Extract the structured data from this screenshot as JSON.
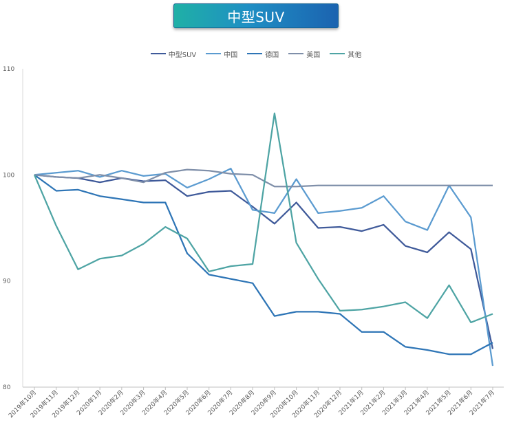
{
  "chart_data": {
    "type": "line",
    "title": "中型SUV",
    "xlabel": "",
    "ylabel": "",
    "ylim": [
      80,
      110
    ],
    "yticks": [
      80,
      90,
      100,
      110
    ],
    "grid": false,
    "legend_position": "top",
    "categories": [
      "2019年10月",
      "2019年11月",
      "2019年12月",
      "2020年1月",
      "2020年2月",
      "2020年3月",
      "2020年4月",
      "2020年5月",
      "2020年6月",
      "2020年7月",
      "2020年8月",
      "2020年9月",
      "2020年10月",
      "2020年11月",
      "2020年12月",
      "2021年1月",
      "2021年2月",
      "2021年3月",
      "2021年4月",
      "2021年5月",
      "2021年6月",
      "2021年7月"
    ],
    "series": [
      {
        "name": "中型SUV",
        "color": "#3f5a9a",
        "values": [
          100,
          99.8,
          99.7,
          99.3,
          99.7,
          99.4,
          99.5,
          98.0,
          98.4,
          98.5,
          97.0,
          95.4,
          97.4,
          95.0,
          95.1,
          94.7,
          95.3,
          93.3,
          92.7,
          94.6,
          93.0,
          83.6
        ]
      },
      {
        "name": "中国",
        "color": "#5b9bd0",
        "values": [
          100,
          100.2,
          100.4,
          99.8,
          100.4,
          99.9,
          100.1,
          98.8,
          99.6,
          100.6,
          96.7,
          96.4,
          99.6,
          96.4,
          96.6,
          96.9,
          98.0,
          95.6,
          94.8,
          99.0,
          96.0,
          82.0
        ]
      },
      {
        "name": "德国",
        "color": "#2e75b6",
        "values": [
          100,
          98.5,
          98.6,
          98.0,
          97.7,
          97.4,
          97.4,
          92.6,
          90.6,
          90.2,
          89.8,
          86.7,
          87.1,
          87.1,
          86.9,
          85.2,
          85.2,
          83.8,
          83.5,
          83.1,
          83.1,
          84.2
        ]
      },
      {
        "name": "美国",
        "color": "#7f8fa9",
        "values": [
          100,
          99.8,
          99.7,
          100.0,
          99.7,
          99.3,
          100.2,
          100.5,
          100.4,
          100.1,
          100.0,
          98.9,
          98.9,
          99.0,
          99.0,
          99.0,
          99.0,
          99.0,
          99.0,
          99.0,
          99.0,
          99.0
        ]
      },
      {
        "name": "其他",
        "color": "#4ea4a4",
        "values": [
          100,
          95.2,
          91.1,
          92.1,
          92.4,
          93.5,
          95.1,
          94.0,
          90.9,
          91.4,
          91.6,
          105.8,
          93.6,
          90.2,
          87.2,
          87.3,
          87.6,
          88.0,
          86.5,
          89.6,
          86.1,
          86.9
        ]
      }
    ]
  }
}
